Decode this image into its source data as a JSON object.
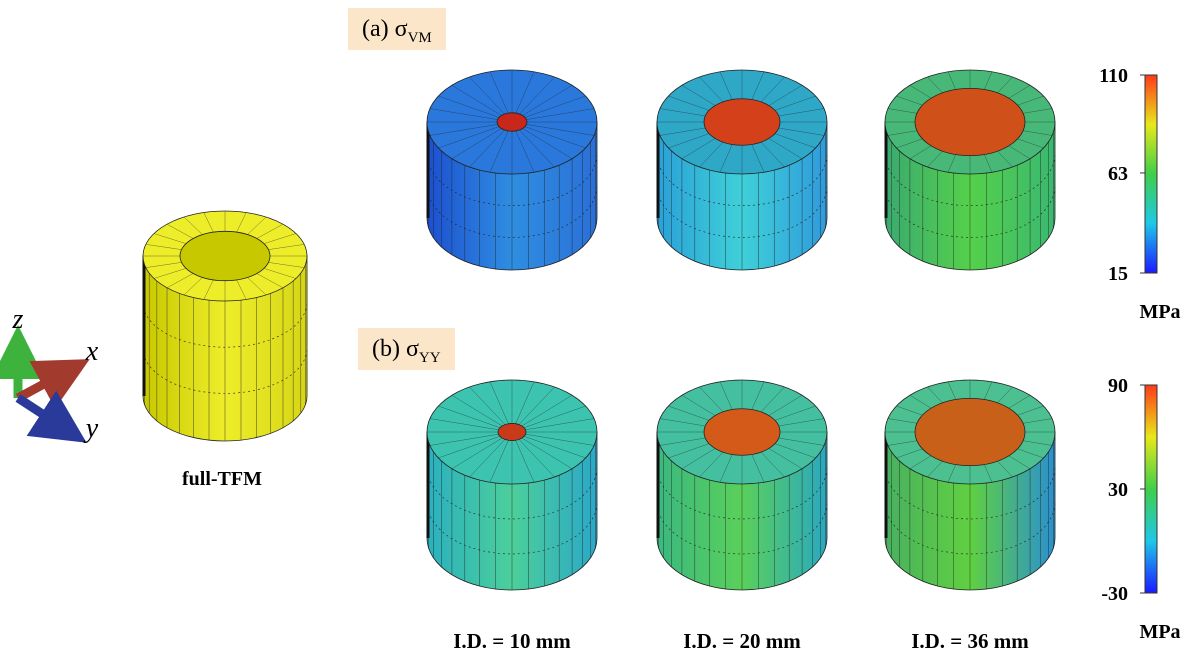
{
  "axes_triad": {
    "z": "z",
    "x": "x",
    "y": "y"
  },
  "model": {
    "label": "full-TFM"
  },
  "panels": [
    {
      "label": "(a) σ",
      "subscript": "VM",
      "colorbar": {
        "ticks": [
          110,
          63,
          15
        ],
        "unit": "MPa"
      }
    },
    {
      "label": "(b) σ",
      "subscript": "YY",
      "colorbar": {
        "ticks": [
          90,
          30,
          -30
        ],
        "unit": "MPa"
      }
    }
  ],
  "columns": [
    "I.D. = 10 mm",
    "I.D. = 20 mm",
    "I.D. = 36 mm"
  ]
}
